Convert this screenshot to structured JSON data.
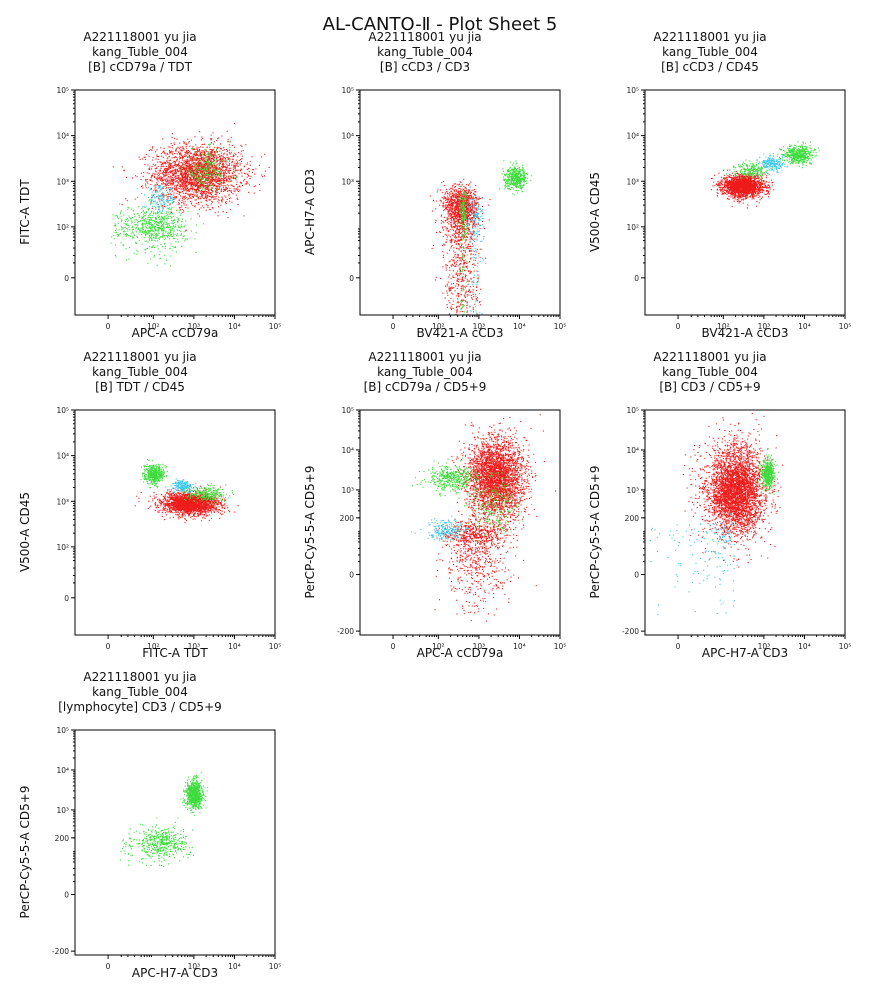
{
  "sheet_title": "AL-CANTO-Ⅱ - Plot Sheet 5",
  "panels": [
    {
      "title_lines": [
        "A221118001 yu jia",
        "kang_Tuble_004",
        "[B] cCD79a / TDT"
      ],
      "xlabel": "APC-A cCD79a",
      "ylabel": "FITC-A TDT",
      "xticks": [
        "0",
        "10²",
        "10³",
        "10⁴",
        "10⁵"
      ],
      "yticks": [
        "0",
        "10²",
        "10³",
        "10⁴",
        "10⁵"
      ],
      "xtick_values": [
        0,
        100,
        1000,
        10000,
        100000
      ],
      "ytick_values": [
        0,
        100,
        1000,
        10000,
        100000
      ],
      "x_scale": "biexponential",
      "y_scale": "biexponential"
    },
    {
      "title_lines": [
        "A221118001 yu jia",
        "kang_Tuble_004",
        "[B] cCD3 / CD3"
      ],
      "xlabel": "BV421-A cCD3",
      "ylabel": "APC-H7-A CD3",
      "xticks": [
        "0",
        "10²",
        "10³",
        "10⁴",
        "10⁵"
      ],
      "yticks": [
        "0",
        "10³",
        "10⁴",
        "10⁵"
      ],
      "xtick_values": [
        0,
        100,
        1000,
        10000,
        100000
      ],
      "ytick_values": [
        0,
        1000,
        10000,
        100000
      ],
      "x_scale": "biexponential",
      "y_scale": "biexponential"
    },
    {
      "title_lines": [
        "A221118001 yu jia",
        "kang_Tuble_004",
        "[B] cCD3 / CD45"
      ],
      "xlabel": "BV421-A cCD3",
      "ylabel": "V500-A CD45",
      "xticks": [
        "0",
        "10²",
        "10³",
        "10⁴",
        "10⁵"
      ],
      "yticks": [
        "0",
        "10²",
        "10³",
        "10⁴",
        "10⁵"
      ],
      "xtick_values": [
        0,
        100,
        1000,
        10000,
        100000
      ],
      "ytick_values": [
        0,
        100,
        1000,
        10000,
        100000
      ],
      "x_scale": "biexponential",
      "y_scale": "biexponential"
    },
    {
      "title_lines": [
        "A221118001 yu jia",
        "kang_Tuble_004",
        "[B] TDT / CD45"
      ],
      "xlabel": "FITC-A TDT",
      "ylabel": "V500-A CD45",
      "xticks": [
        "0",
        "10²",
        "10³",
        "10⁴",
        "10⁵"
      ],
      "yticks": [
        "0",
        "10²",
        "10³",
        "10⁴",
        "10⁵"
      ],
      "xtick_values": [
        0,
        100,
        1000,
        10000,
        100000
      ],
      "ytick_values": [
        0,
        100,
        1000,
        10000,
        100000
      ],
      "x_scale": "biexponential",
      "y_scale": "biexponential"
    },
    {
      "title_lines": [
        "A221118001 yu jia",
        "kang_Tuble_004",
        "[B] cCD79a / CD5+9"
      ],
      "xlabel": "APC-A cCD79a",
      "ylabel": "PerCP-Cy5-5-A CD5+9",
      "xticks": [
        "0",
        "10²",
        "10³",
        "10⁴",
        "10⁵"
      ],
      "yticks": [
        "-200",
        "0",
        "200",
        "10³",
        "10⁴",
        "10⁵"
      ],
      "xtick_values": [
        0,
        100,
        1000,
        10000,
        100000
      ],
      "ytick_values": [
        -200,
        0,
        200,
        1000,
        10000,
        100000
      ],
      "x_scale": "biexponential",
      "y_scale": "biexponential"
    },
    {
      "title_lines": [
        "A221118001 yu jia",
        "kang_Tuble_004",
        "[B] CD3 / CD5+9"
      ],
      "xlabel": "APC-H7-A CD3",
      "ylabel": "PerCP-Cy5-5-A CD5+9",
      "xticks": [
        "0",
        "10³",
        "10⁴",
        "10⁵"
      ],
      "yticks": [
        "-200",
        "0",
        "200",
        "10³",
        "10⁴",
        "10⁵"
      ],
      "xtick_values": [
        0,
        1000,
        10000,
        100000
      ],
      "ytick_values": [
        -200,
        0,
        200,
        1000,
        10000,
        100000
      ],
      "x_scale": "biexponential",
      "y_scale": "biexponential"
    },
    {
      "title_lines": [
        "A221118001 yu jia",
        "kang_Tuble_004",
        "[lymphocyte] CD3 / CD5+9"
      ],
      "xlabel": "APC-H7-A CD3",
      "ylabel": "PerCP-Cy5-5-A CD5+9",
      "xticks": [
        "0",
        "10³",
        "10⁴",
        "10⁵"
      ],
      "yticks": [
        "-200",
        "0",
        "200",
        "10³",
        "10⁴",
        "10⁵"
      ],
      "xtick_values": [
        0,
        1000,
        10000,
        100000
      ],
      "ytick_values": [
        -200,
        0,
        200,
        1000,
        10000,
        100000
      ],
      "x_scale": "biexponential",
      "y_scale": "biexponential"
    }
  ],
  "population_colors": {
    "red": "#ee1c1c",
    "green": "#3ddc3d",
    "cyan": "#3ec8ec",
    "gray": "#555555"
  },
  "chart_data": [
    {
      "type": "scatter",
      "title": "[B] cCD79a / TDT",
      "xlabel": "APC-A cCD79a",
      "ylabel": "FITC-A TDT",
      "xlim": [
        -50,
        100000
      ],
      "ylim": [
        -50,
        100000
      ],
      "clusters": [
        {
          "color": "red",
          "cx": 1200,
          "cy": 1500,
          "sx": 0.55,
          "sy": 0.32,
          "n": 2600
        },
        {
          "color": "green",
          "cx": 2000,
          "cy": 1800,
          "sx": 0.3,
          "sy": 0.22,
          "n": 260
        },
        {
          "color": "cyan",
          "cx": 150,
          "cy": 400,
          "sx": 0.18,
          "sy": 0.15,
          "n": 160
        },
        {
          "color": "green",
          "cx": 100,
          "cy": 100,
          "sx": 0.4,
          "sy": 0.22,
          "n": 700
        }
      ]
    },
    {
      "type": "scatter",
      "title": "[B] cCD3 / CD3",
      "xlabel": "BV421-A cCD3",
      "ylabel": "APC-H7-A CD3",
      "xlim": [
        -50,
        100000
      ],
      "ylim": [
        -50,
        100000
      ],
      "clusters": [
        {
          "color": "red",
          "cx": 350,
          "cy": 50,
          "sx": 0.22,
          "sy": 0.6,
          "n": 2600
        },
        {
          "color": "green",
          "cx": 400,
          "cy": 50,
          "sx": 0.05,
          "sy": 0.55,
          "n": 280
        },
        {
          "color": "cyan",
          "cx": 800,
          "cy": 30,
          "sx": 0.1,
          "sy": 0.4,
          "n": 220
        },
        {
          "color": "green",
          "cx": 8000,
          "cy": 1200,
          "sx": 0.14,
          "sy": 0.12,
          "n": 450
        }
      ]
    },
    {
      "type": "scatter",
      "title": "[B] cCD3 / CD45",
      "xlabel": "BV421-A cCD3",
      "ylabel": "V500-A CD45",
      "xlim": [
        -50,
        100000
      ],
      "ylim": [
        -50,
        100000
      ],
      "clusters": [
        {
          "color": "red",
          "cx": 300,
          "cy": 800,
          "sx": 0.25,
          "sy": 0.12,
          "n": 2000
        },
        {
          "color": "green",
          "cx": 500,
          "cy": 1800,
          "sx": 0.2,
          "sy": 0.08,
          "n": 200
        },
        {
          "color": "cyan",
          "cx": 1500,
          "cy": 2500,
          "sx": 0.15,
          "sy": 0.08,
          "n": 200
        },
        {
          "color": "green",
          "cx": 7000,
          "cy": 4000,
          "sx": 0.18,
          "sy": 0.1,
          "n": 500
        }
      ]
    },
    {
      "type": "scatter",
      "title": "[B] TDT / CD45",
      "xlabel": "FITC-A TDT",
      "ylabel": "V500-A CD45",
      "xlim": [
        -50,
        100000
      ],
      "ylim": [
        -50,
        100000
      ],
      "clusters": [
        {
          "color": "red",
          "cx": 800,
          "cy": 900,
          "sx": 0.35,
          "sy": 0.12,
          "n": 2200
        },
        {
          "color": "green",
          "cx": 100,
          "cy": 4000,
          "sx": 0.12,
          "sy": 0.1,
          "n": 450
        },
        {
          "color": "cyan",
          "cx": 500,
          "cy": 2200,
          "sx": 0.12,
          "sy": 0.07,
          "n": 200
        },
        {
          "color": "green",
          "cx": 2000,
          "cy": 1500,
          "sx": 0.25,
          "sy": 0.08,
          "n": 250
        }
      ]
    },
    {
      "type": "scatter",
      "title": "[B] cCD79a / CD5+9",
      "xlabel": "APC-A cCD79a",
      "ylabel": "PerCP-Cy5-5-A CD5+9",
      "xlim": [
        -50,
        100000
      ],
      "ylim": [
        -250,
        100000
      ],
      "clusters": [
        {
          "color": "red",
          "cx": 2500,
          "cy": 2000,
          "sx": 0.35,
          "sy": 0.5,
          "n": 3200
        },
        {
          "color": "red",
          "cx": 800,
          "cy": 50,
          "sx": 0.4,
          "sy": 0.1,
          "n": 900
        },
        {
          "color": "green",
          "cx": 200,
          "cy": 2000,
          "sx": 0.28,
          "sy": 0.16,
          "n": 400
        },
        {
          "color": "green",
          "cx": 2500,
          "cy": 500,
          "sx": 0.3,
          "sy": 0.4,
          "n": 250
        },
        {
          "color": "cyan",
          "cx": 150,
          "cy": 100,
          "sx": 0.25,
          "sy": 0.12,
          "n": 220
        }
      ]
    },
    {
      "type": "scatter",
      "title": "[B] CD3 / CD5+9",
      "xlabel": "APC-H7-A CD3",
      "ylabel": "PerCP-Cy5-5-A CD5+9",
      "xlim": [
        -50,
        100000
      ],
      "ylim": [
        -250,
        100000
      ],
      "clusters": [
        {
          "color": "red",
          "cx": 200,
          "cy": 1000,
          "sx": 0.35,
          "sy": 0.55,
          "n": 3800
        },
        {
          "color": "green",
          "cx": 1200,
          "cy": 2500,
          "sx": 0.08,
          "sy": 0.18,
          "n": 450
        },
        {
          "color": "cyan",
          "cx": 50,
          "cy": 50,
          "sx": 0.25,
          "sy": 0.1,
          "n": 180
        }
      ]
    },
    {
      "type": "scatter",
      "title": "[lymphocyte] CD3 / CD5+9",
      "xlabel": "APC-H7-A CD3",
      "ylabel": "PerCP-Cy5-5-A CD5+9",
      "xlim": [
        -50,
        100000
      ],
      "ylim": [
        -250,
        100000
      ],
      "clusters": [
        {
          "color": "green",
          "cx": 1000,
          "cy": 2500,
          "sx": 0.1,
          "sy": 0.18,
          "n": 800
        },
        {
          "color": "green",
          "cx": 150,
          "cy": 150,
          "sx": 0.35,
          "sy": 0.2,
          "n": 500
        }
      ]
    }
  ]
}
